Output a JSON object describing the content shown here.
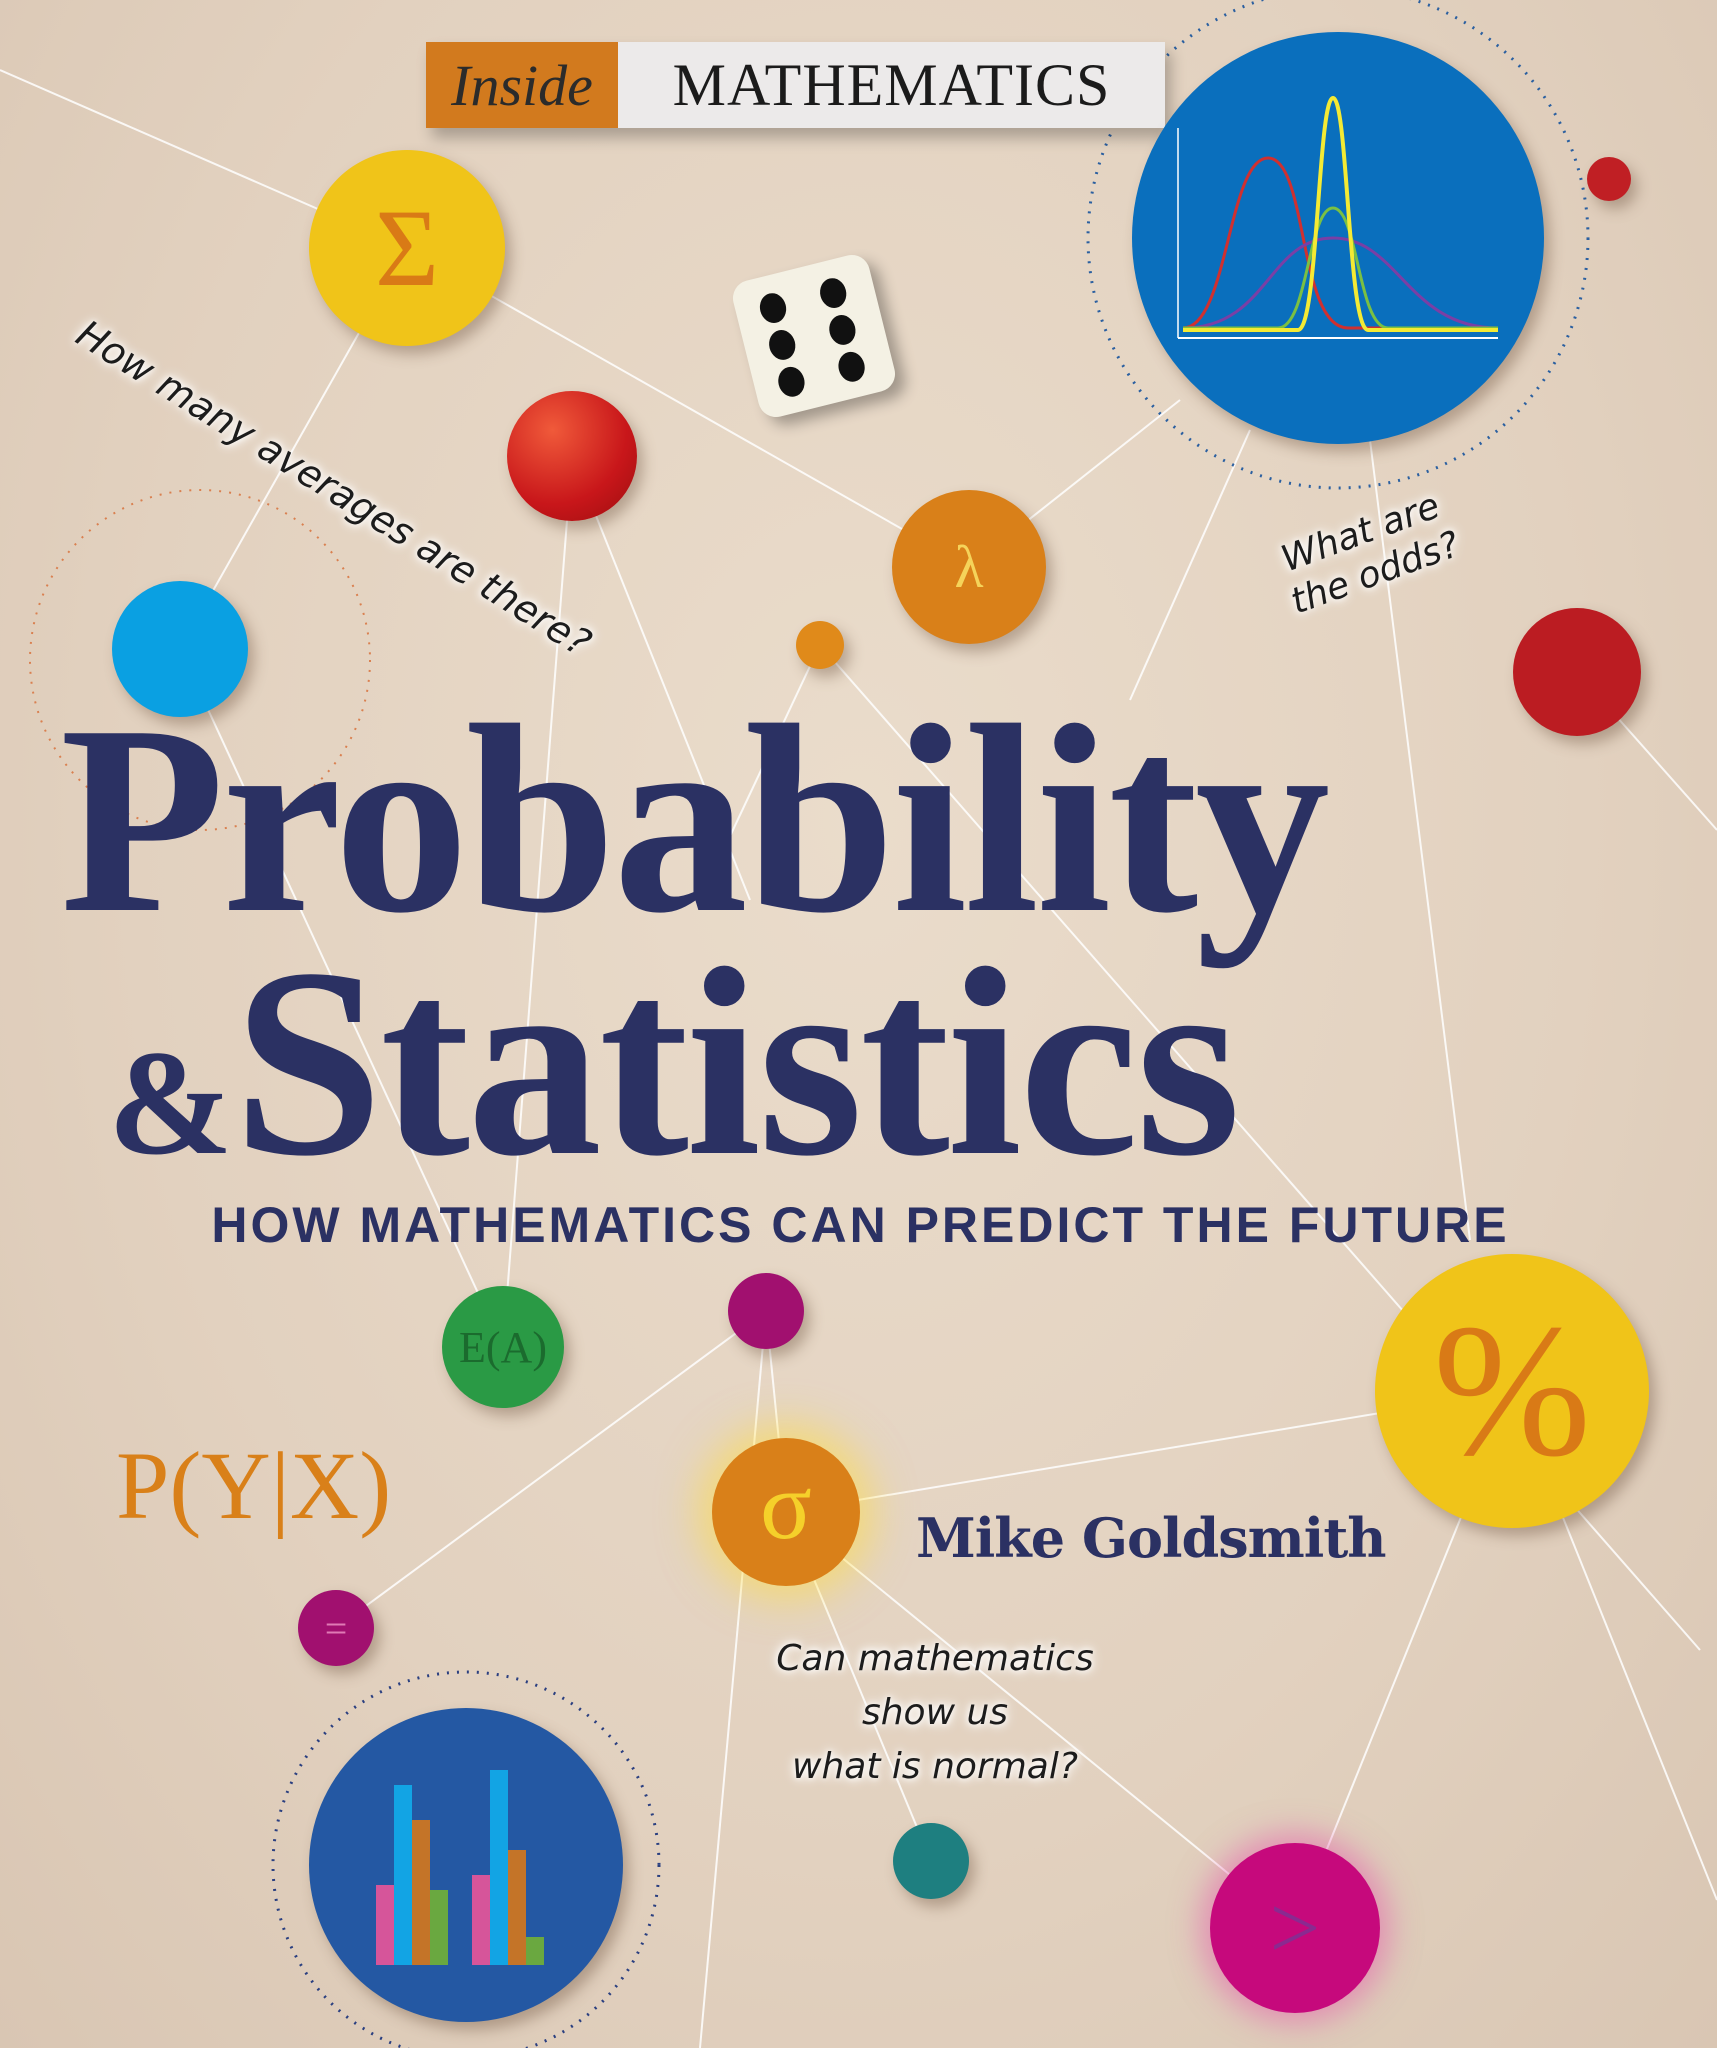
{
  "series_banner": {
    "prefix": "Inside",
    "name": "MATHEMATICS"
  },
  "title": {
    "line1": "Probability",
    "line2_amp": "&",
    "line2": "Statistics"
  },
  "subtitle": "HOW MATHEMATICS CAN PREDICT THE FUTURE",
  "author": "Mike Goldsmith",
  "questions": {
    "averages": "How many averages are there?",
    "odds_line1": "What are",
    "odds_line2": "the odds?",
    "normal_line1": "Can mathematics",
    "normal_line2": "show us",
    "normal_line3": "what is normal?"
  },
  "symbols": {
    "sigma_upper": "Σ",
    "lambda": "λ",
    "expectation": "E(A)",
    "conditional": "P(Y|X)",
    "sigma_lower": "σ",
    "percent": "%",
    "equals": "=",
    "greater_than": ">"
  },
  "colors": {
    "title": "#2b3163",
    "background": "#e4d4c2",
    "orange": "#d98019",
    "yellow": "#f0c419",
    "blue": "#0a6fbd",
    "magenta": "#c6097c",
    "green": "#2a9a45",
    "teal": "#1e7f80",
    "red": "#c01f24"
  }
}
